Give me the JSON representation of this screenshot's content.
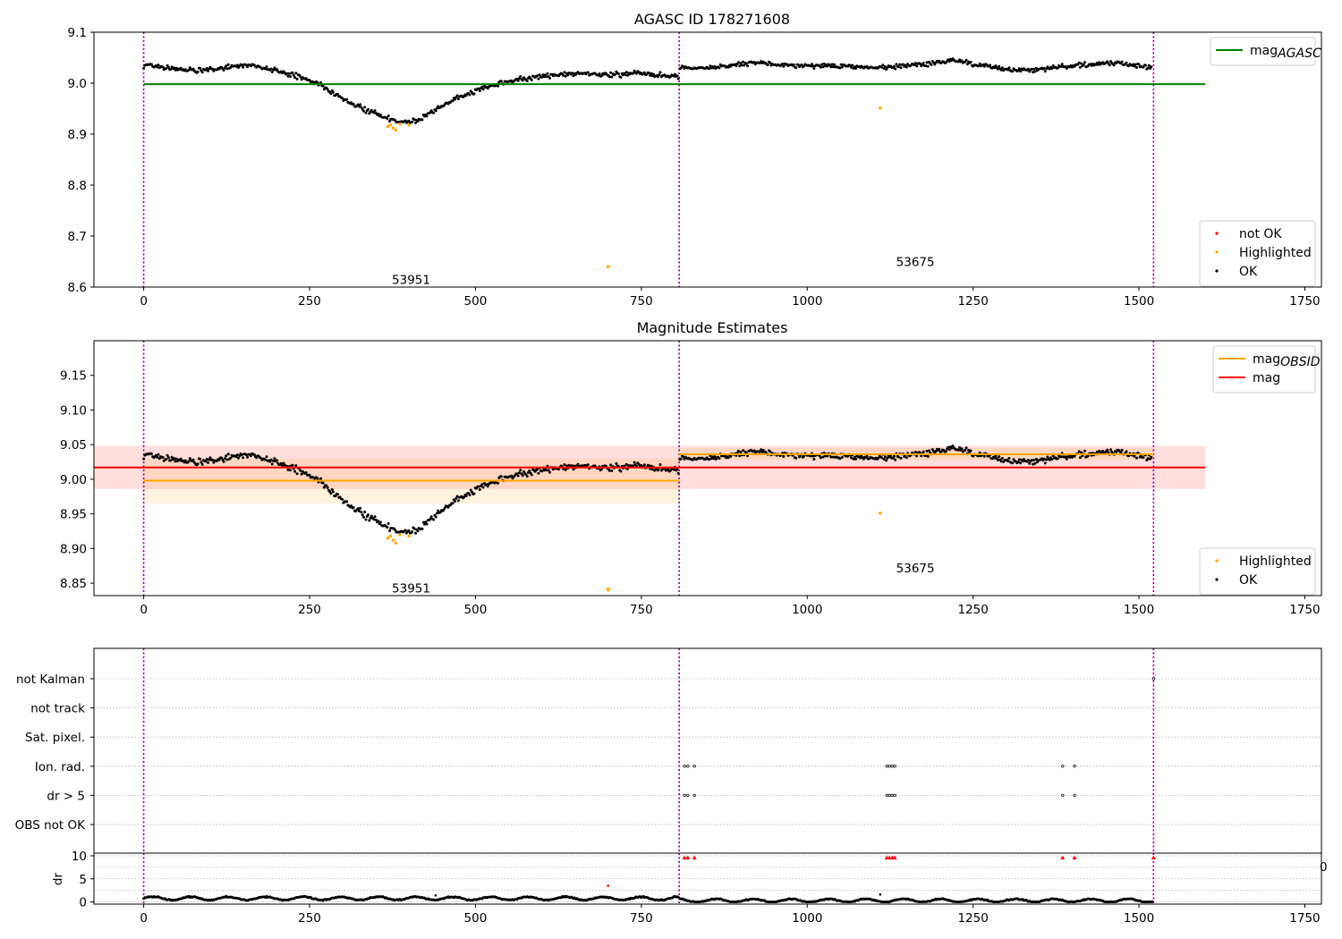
{
  "chart_data": [
    {
      "type": "scatter",
      "title": "AGASC ID 178271608",
      "xlim": [
        -75,
        1775
      ],
      "ylim": [
        8.6,
        9.1
      ],
      "x_ticks": [
        "0",
        "250",
        "500",
        "750",
        "1000",
        "1250",
        "1500",
        "1750"
      ],
      "y_ticks": [
        "9.1",
        "9.0",
        "8.9",
        "8.8",
        "8.7",
        "8.6"
      ],
      "grid": false,
      "legend_upper": {
        "position": "top-right",
        "entries": [
          {
            "label": "mag",
            "sub": "AGASC",
            "color": "#008000"
          }
        ]
      },
      "legend_lower": {
        "position": "bottom-right",
        "entries": [
          {
            "label": "not OK",
            "color": "#ff0000"
          },
          {
            "label": "Highlighted",
            "color": "#ffa500"
          },
          {
            "label": "OK",
            "color": "#000000"
          }
        ]
      },
      "obsid_labels": [
        {
          "text": "53951",
          "x": 403,
          "y": 8.615
        },
        {
          "text": "53675",
          "x": 1163,
          "y": 8.65
        }
      ],
      "obsid_boundaries": [
        0,
        807,
        1522
      ],
      "series": [
        {
          "name": "mag_AGASC",
          "kind": "hline",
          "value": 8.998,
          "x_range": [
            0,
            1600
          ],
          "color": "#008000"
        },
        {
          "name": "OK",
          "kind": "points",
          "color": "#000000",
          "segments": [
            {
              "x": [
                0,
                40,
                80,
                120,
                160,
                200,
                240,
                270,
                300,
                330,
                350,
                370,
                390,
                410,
                430,
                450,
                470,
                500,
                540,
                580,
                620,
                660,
                700,
                740,
                780,
                806
              ],
              "y": [
                9.035,
                9.03,
                9.025,
                9.03,
                9.035,
                9.025,
                9.01,
                8.995,
                8.97,
                8.95,
                8.94,
                8.93,
                8.925,
                8.925,
                8.94,
                8.955,
                8.97,
                8.985,
                9.0,
                9.01,
                9.015,
                9.02,
                9.015,
                9.02,
                9.015,
                9.01
              ]
            },
            {
              "x": [
                808,
                860,
                920,
                980,
                1040,
                1100,
                1160,
                1220,
                1280,
                1340,
                1400,
                1460,
                1520
              ],
              "y": [
                9.03,
                9.03,
                9.04,
                9.035,
                9.035,
                9.03,
                9.035,
                9.045,
                9.03,
                9.025,
                9.035,
                9.04,
                9.03
              ]
            }
          ],
          "scatter": 0.01,
          "step": 1.7
        },
        {
          "name": "Highlighted",
          "kind": "points",
          "color": "#ffa500",
          "points": [
            [
              368,
              8.915
            ],
            [
              372,
              8.918
            ],
            [
              376,
              8.912
            ],
            [
              380,
              8.908
            ],
            [
              386,
              8.92
            ],
            [
              400,
              8.918
            ],
            [
              700,
              8.64
            ],
            [
              1110,
              8.951
            ]
          ]
        }
      ]
    },
    {
      "type": "scatter",
      "title": "Magnitude Estimates",
      "xlim": [
        -75,
        1775
      ],
      "ylim": [
        8.832,
        9.2
      ],
      "x_ticks": [
        "0",
        "250",
        "500",
        "750",
        "1000",
        "1250",
        "1500",
        "1750"
      ],
      "y_ticks": [
        "9.15",
        "9.10",
        "9.05",
        "9.00",
        "8.95",
        "8.90",
        "8.85"
      ],
      "grid": false,
      "legend_upper": {
        "position": "top-right",
        "entries": [
          {
            "label": "mag",
            "sub": "OBSID",
            "color": "#ffa500"
          },
          {
            "label": "mag",
            "color": "#ff0000"
          }
        ]
      },
      "legend_lower": {
        "position": "bottom-right",
        "entries": [
          {
            "label": "Highlighted",
            "color": "#ffa500"
          },
          {
            "label": "OK",
            "color": "#000000"
          }
        ]
      },
      "obsid_labels": [
        {
          "text": "53951",
          "x": 403,
          "y": 8.843
        },
        {
          "text": "53675",
          "x": 1163,
          "y": 8.872
        }
      ],
      "obsid_boundaries": [
        0,
        807,
        1522
      ],
      "bands": [
        {
          "x_range": [
            -75,
            1600
          ],
          "y_range": [
            8.986,
            9.048
          ],
          "color": "#ff0000"
        },
        {
          "x_range": [
            0,
            807
          ],
          "y_range": [
            8.965,
            9.03
          ],
          "color": "#ffa500"
        },
        {
          "x_range": [
            807,
            1522
          ],
          "y_range": [
            9.028,
            9.045
          ],
          "color": "#ffa500"
        }
      ],
      "series": [
        {
          "name": "mag",
          "kind": "hline",
          "value": 9.017,
          "x_range": [
            -75,
            1600
          ],
          "color": "#ff0000"
        },
        {
          "name": "mag_OBSID 53951",
          "kind": "hline",
          "value": 8.998,
          "x_range": [
            0,
            807
          ],
          "color": "#ffa500"
        },
        {
          "name": "mag_OBSID 53675",
          "kind": "hline",
          "value": 9.036,
          "x_range": [
            807,
            1522
          ],
          "color": "#ffa500"
        },
        {
          "name": "Highlighted",
          "kind": "points",
          "color": "#ffa500",
          "points": [
            [
              368,
              8.915
            ],
            [
              372,
              8.918
            ],
            [
              376,
              8.912
            ],
            [
              380,
              8.908
            ],
            [
              386,
              8.92
            ],
            [
              400,
              8.918
            ],
            [
              1110,
              8.951
            ]
          ]
        },
        {
          "name": "Highlighted (clipped)",
          "kind": "marker",
          "color": "#ffa500",
          "points": [
            [
              700,
              8.838
            ]
          ]
        }
      ]
    },
    {
      "type": "scatter",
      "title": "",
      "xlim": [
        -75,
        1775
      ],
      "categories": [
        "not Kalman",
        "not track",
        "Sat. pixel.",
        "Ion. rad.",
        "dr > 5",
        "OBS not OK"
      ],
      "grid": true,
      "obsid_boundaries": [
        0,
        807,
        1522
      ],
      "flag_points": {
        "not Kalman": [
          1522
        ],
        "Ion. rad.": [
          815,
          820,
          830,
          1120,
          1124,
          1128,
          1132,
          1385,
          1403
        ],
        "dr > 5": [
          815,
          820,
          830,
          1120,
          1124,
          1128,
          1132,
          1385,
          1403
        ]
      }
    },
    {
      "type": "scatter",
      "title": "",
      "xlim": [
        -75,
        1775
      ],
      "ylim": [
        -0.6,
        11
      ],
      "ylabel": "dr",
      "x_ticks": [
        "0",
        "250",
        "500",
        "750",
        "1000",
        "1250",
        "1500",
        "1750"
      ],
      "y_ticks": [
        "10",
        "5",
        "0"
      ],
      "grid": true,
      "clipped_label": "0",
      "obsid_boundaries": [
        0,
        807,
        1522
      ],
      "series": [
        {
          "name": "OK",
          "kind": "band_points",
          "color": "#000000",
          "segments": [
            {
              "x_range": [
                0,
                806
              ],
              "level": 0.75
            },
            {
              "x_range": [
                808,
                1522
              ],
              "level": 0.3
            }
          ]
        },
        {
          "name": "not OK",
          "kind": "points",
          "color": "#ff0000",
          "points": [
            [
              700,
              3.5
            ],
            [
              815,
              9.6
            ],
            [
              820,
              9.6
            ],
            [
              830,
              9.6
            ],
            [
              1120,
              9.6
            ],
            [
              1124,
              9.6
            ],
            [
              1128,
              9.6
            ],
            [
              1132,
              9.6
            ],
            [
              1385,
              9.6
            ],
            [
              1403,
              9.6
            ],
            [
              1522,
              9.6
            ]
          ]
        },
        {
          "name": "outlier",
          "kind": "points",
          "color": "#000000",
          "points": [
            [
              1110,
              1.6
            ],
            [
              440,
              1.4
            ]
          ]
        }
      ]
    }
  ],
  "colors": {
    "ok": "#000000",
    "highlighted": "#ffa500",
    "not_ok": "#ff0000",
    "agasc": "#008000",
    "boundary": "#800080",
    "grid": "#b0b0b0"
  }
}
